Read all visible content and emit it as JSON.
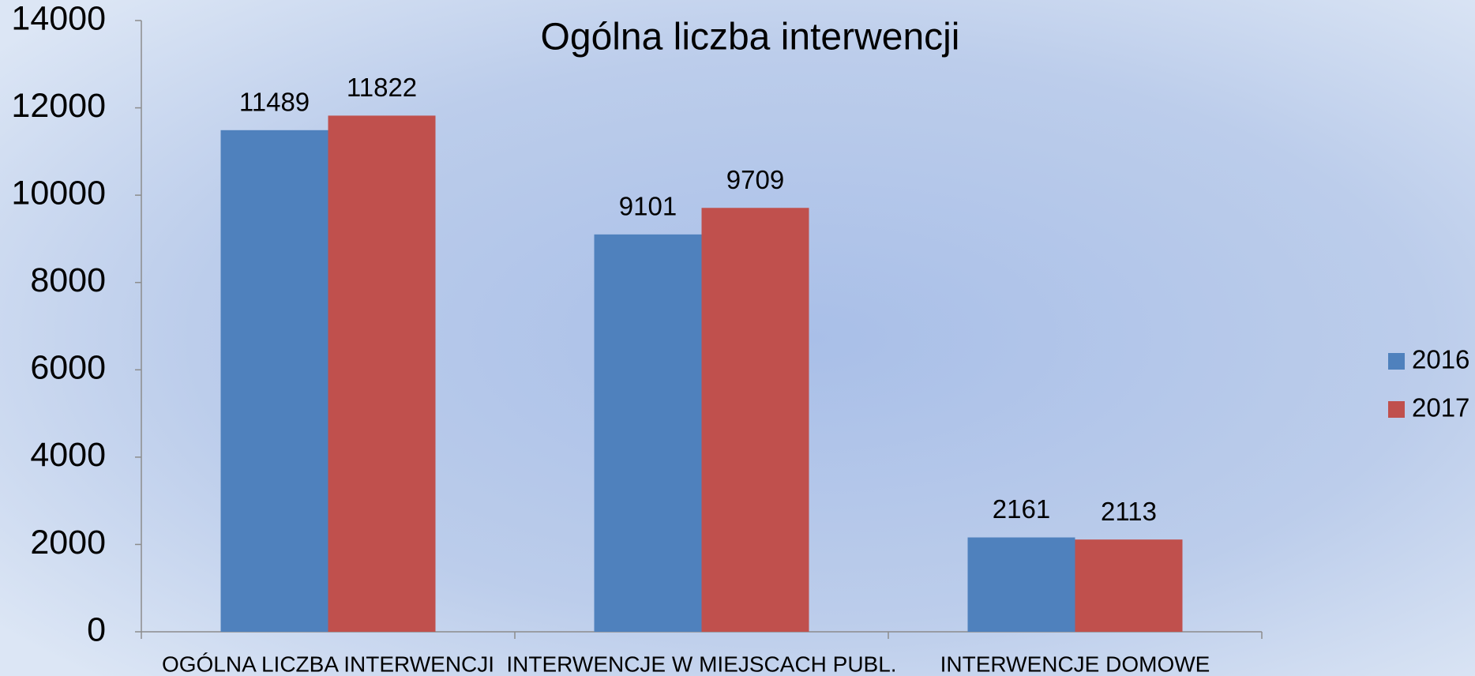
{
  "chart_data": {
    "type": "bar",
    "title": "Ogólna liczba interwencji",
    "categories": [
      "OGÓLNA LICZBA INTERWENCJI",
      "INTERWENCJE W MIEJSCACH PUBL.",
      "INTERWENCJE DOMOWE"
    ],
    "series": [
      {
        "name": "2016",
        "color": "#4f81bd",
        "values": [
          11489,
          9101,
          2161
        ]
      },
      {
        "name": "2017",
        "color": "#c0504d",
        "values": [
          11822,
          9709,
          2113
        ]
      }
    ],
    "ylim": [
      0,
      14000
    ],
    "yticks": [
      0,
      2000,
      4000,
      6000,
      8000,
      10000,
      12000,
      14000
    ],
    "legend": "right"
  }
}
